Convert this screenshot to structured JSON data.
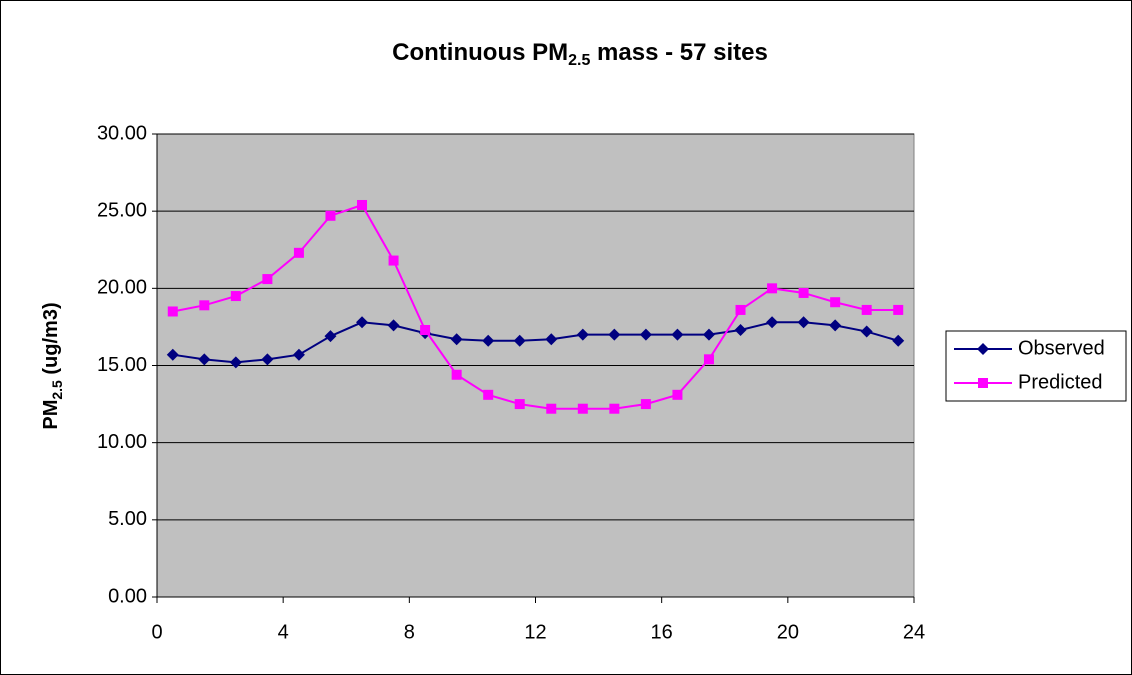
{
  "chart_data": {
    "type": "line",
    "title": [
      "Continuous PM",
      "2.5",
      " mass - 57 sites"
    ],
    "y_label": [
      "PM",
      "2.5",
      " (ug/m3)"
    ],
    "x": [
      0.5,
      1.5,
      2.5,
      3.5,
      4.5,
      5.5,
      6.5,
      7.5,
      8.5,
      9.5,
      10.5,
      11.5,
      12.5,
      13.5,
      14.5,
      15.5,
      16.5,
      17.5,
      18.5,
      19.5,
      20.5,
      21.5,
      22.5,
      23.5
    ],
    "series": [
      {
        "name": "Observed",
        "color": "#000080",
        "marker": "diamond",
        "values": [
          15.7,
          15.4,
          15.2,
          15.4,
          15.7,
          16.9,
          17.8,
          17.6,
          17.1,
          16.7,
          16.6,
          16.6,
          16.7,
          17.0,
          17.0,
          17.0,
          17.0,
          17.0,
          17.3,
          17.8,
          17.8,
          17.6,
          17.2,
          16.6
        ]
      },
      {
        "name": "Predicted",
        "color": "#ff00ff",
        "marker": "square",
        "values": [
          18.5,
          18.9,
          19.5,
          20.6,
          22.3,
          24.7,
          25.4,
          21.8,
          17.3,
          14.4,
          13.1,
          12.5,
          12.2,
          12.2,
          12.2,
          12.5,
          13.1,
          15.4,
          18.6,
          20.0,
          19.7,
          19.1,
          18.6,
          18.6
        ]
      }
    ],
    "xlim": [
      0,
      24
    ],
    "xticks": [
      0,
      4,
      8,
      12,
      16,
      20,
      24
    ],
    "ylim": [
      0,
      30
    ],
    "yticks": [
      {
        "value": 0,
        "label": "0.00"
      },
      {
        "value": 5,
        "label": "5.00"
      },
      {
        "value": 10,
        "label": "10.00"
      },
      {
        "value": 15,
        "label": "15.00"
      },
      {
        "value": 20,
        "label": "20.00"
      },
      {
        "value": 25,
        "label": "25.00"
      },
      {
        "value": 30,
        "label": "30.00"
      }
    ],
    "grid": true,
    "plot_background": "#c0c0c0",
    "legend_position": "right"
  }
}
